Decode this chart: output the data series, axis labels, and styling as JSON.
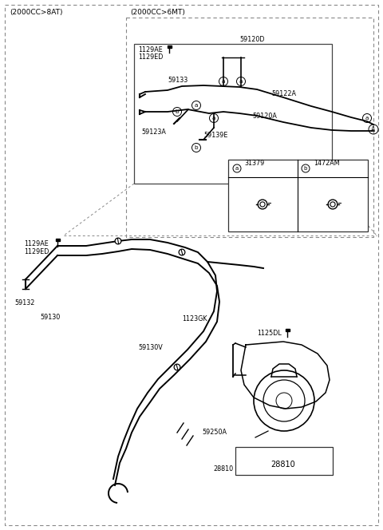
{
  "bg_color": "#ffffff",
  "lc": "#000000",
  "gray": "#888888",
  "fs": 6.5,
  "fs_small": 5.8,
  "labels": {
    "top_left": "(2000CC>8AT)",
    "top_right": "(2000CC>6MT)",
    "p1129AE_top": "1129AE",
    "p1129ED_top": "1129ED",
    "p59120D": "59120D",
    "p59133": "59133",
    "p59122A": "59122A",
    "p59120A": "59120A",
    "p59123A": "59123A",
    "p59139E": "59139E",
    "p1129AE_bot": "1129AE",
    "p1129ED_bot": "1129ED",
    "p59132": "59132",
    "p59130": "59130",
    "p1123GK": "1123GK",
    "p59130V": "59130V",
    "p1125DL": "1125DL",
    "p59250A": "59250A",
    "p28810": "28810",
    "legend_31379": "31379",
    "legend_1472AM": "1472AM"
  }
}
